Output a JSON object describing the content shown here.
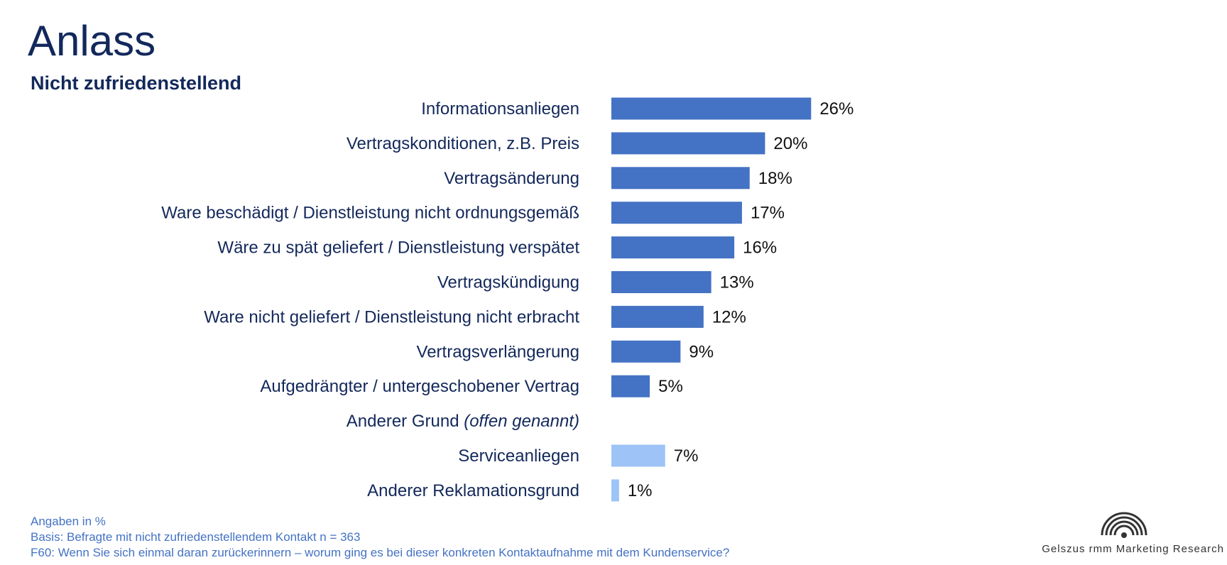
{
  "header": {
    "title": "Anlass",
    "subtitle": "Nicht zufriedenstellend"
  },
  "chart_data": {
    "type": "bar",
    "orientation": "horizontal",
    "title": "",
    "xlabel": "",
    "ylabel": "",
    "xlim": [
      0,
      100
    ],
    "grid": false,
    "categories": [
      "Informationsanliegen",
      "Vertragskonditionen, z.B. Preis",
      "Vertragsänderung",
      "Ware beschädigt / Dienstleistung nicht ordnungsgemäß",
      "Wäre zu spät geliefert / Dienstleistung verspätet",
      "Vertragskündigung",
      "Ware nicht geliefert / Dienstleistung nicht erbracht",
      "Vertragsverlängerung",
      "Aufgedrängter / untergeschobener Vertrag",
      "Anderer Grund",
      "Serviceanliegen",
      "Anderer Reklamationsgrund"
    ],
    "category_suffixes": [
      "",
      "",
      "",
      "",
      "",
      "",
      "",
      "",
      "",
      "(offen genannt)",
      "",
      ""
    ],
    "values": [
      26,
      20,
      18,
      17,
      16,
      13,
      12,
      9,
      5,
      null,
      7,
      1
    ],
    "value_labels": [
      "26%",
      "20%",
      "18%",
      "17%",
      "16%",
      "13%",
      "12%",
      "9%",
      "5%",
      "",
      "7%",
      "1%"
    ],
    "bar_colors": [
      "#4472c4",
      "#4472c4",
      "#4472c4",
      "#4472c4",
      "#4472c4",
      "#4472c4",
      "#4472c4",
      "#4472c4",
      "#4472c4",
      "#4472c4",
      "#9dc3f7",
      "#9dc3f7"
    ]
  },
  "footnotes": {
    "line1": "Angaben in %",
    "line2": "Basis: Befragte mit nicht zufriedenstellendem Kontakt n = 363",
    "line3": "F60: Wenn Sie sich einmal daran zurückerinnern – worum ging es bei dieser konkreten Kontaktaufnahme mit dem Kundenservice?"
  },
  "logo": {
    "text": "Gelszus rmm Marketing Research",
    "icon": "concentric-arcs-logo-icon"
  }
}
